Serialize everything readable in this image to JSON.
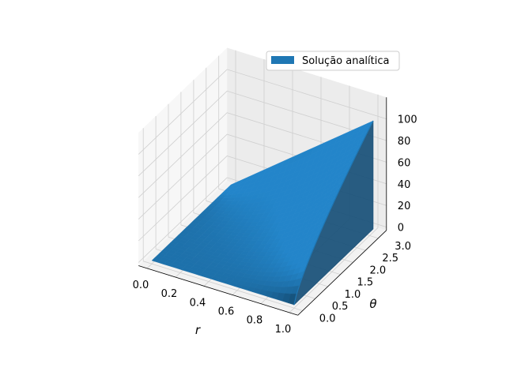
{
  "chart_data": {
    "type": "surface3d",
    "title": "",
    "xlabel": "r",
    "ylabel": "θ",
    "zlabel": "",
    "xlim": [
      0,
      1
    ],
    "ylim": [
      0,
      3.14159
    ],
    "zlim": [
      0,
      100
    ],
    "x_ticks": [
      "0.0",
      "0.2",
      "0.4",
      "0.6",
      "0.8",
      "1.0"
    ],
    "y_ticks": [
      "0.0",
      "0.5",
      "1.0",
      "1.5",
      "2.0",
      "2.5",
      "3.0"
    ],
    "z_ticks": [
      "0",
      "20",
      "40",
      "60",
      "80",
      "100"
    ],
    "grid": true,
    "legend_position": "top-right",
    "series": [
      {
        "name": "Solução analítica",
        "color": "#1f77b4",
        "surface_description": "u(r,θ) = 0 at r=0 and θ=0; rises along θ at r=1 from 0 at θ=0 to 100 at θ=π; u(r,π) ≈ 100·r",
        "boundary_r1": [
          [
            0.0,
            0
          ],
          [
            0.5,
            16
          ],
          [
            1.0,
            32
          ],
          [
            1.5,
            48
          ],
          [
            2.0,
            64
          ],
          [
            2.5,
            80
          ],
          [
            3.14159,
            100
          ]
        ],
        "boundary_theta_pi": [
          [
            0.0,
            0
          ],
          [
            0.2,
            20
          ],
          [
            0.4,
            40
          ],
          [
            0.6,
            60
          ],
          [
            0.8,
            80
          ],
          [
            1.0,
            100
          ]
        ]
      }
    ]
  }
}
